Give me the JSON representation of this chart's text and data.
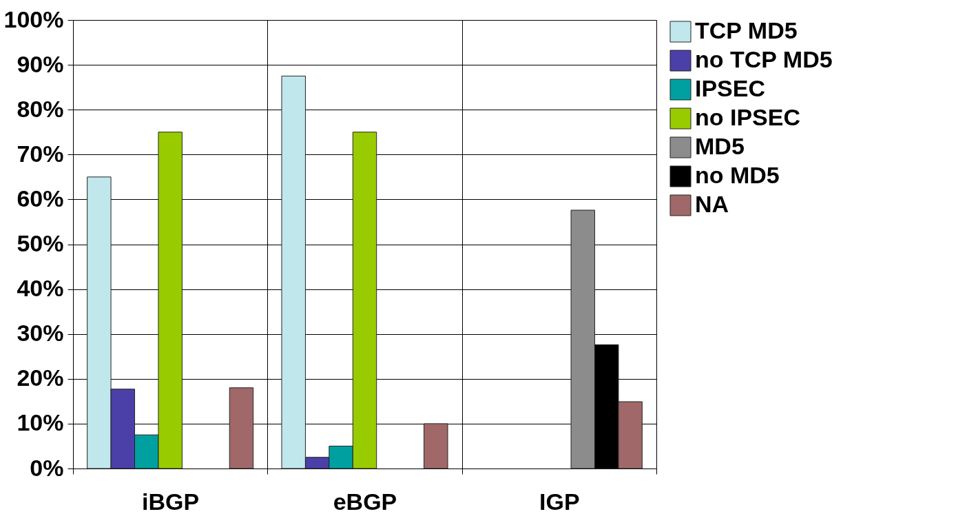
{
  "chart_data": {
    "type": "bar",
    "categories": [
      "iBGP",
      "eBGP",
      "IGP"
    ],
    "series": [
      {
        "name": "TCP MD5",
        "color": "#c0e8ec",
        "values": [
          65,
          87.5,
          null
        ]
      },
      {
        "name": "no TCP MD5",
        "color": "#4b3fa8",
        "values": [
          17.7,
          2.5,
          null
        ]
      },
      {
        "name": "IPSEC",
        "color": "#00a0a0",
        "values": [
          7.5,
          5,
          null
        ]
      },
      {
        "name": "no IPSEC",
        "color": "#99cc00",
        "values": [
          75,
          75,
          null
        ]
      },
      {
        "name": "MD5",
        "color": "#8c8c8c",
        "values": [
          null,
          null,
          57.6
        ]
      },
      {
        "name": "no MD5",
        "color": "#000000",
        "values": [
          null,
          null,
          27.6
        ]
      },
      {
        "name": "NA",
        "color": "#a06868",
        "values": [
          18,
          10,
          14.9
        ]
      }
    ],
    "ylim": [
      0,
      100
    ],
    "yticks": [
      {
        "value": 0,
        "label": "0%"
      },
      {
        "value": 10,
        "label": "10%"
      },
      {
        "value": 20,
        "label": "20%"
      },
      {
        "value": 30,
        "label": "30%"
      },
      {
        "value": 40,
        "label": "40%"
      },
      {
        "value": 50,
        "label": "50%"
      },
      {
        "value": 60,
        "label": "60%"
      },
      {
        "value": 70,
        "label": "70%"
      },
      {
        "value": 80,
        "label": "80%"
      },
      {
        "value": 90,
        "label": "90%"
      },
      {
        "value": 100,
        "label": "100%"
      }
    ],
    "grid": true,
    "legend": "right"
  }
}
